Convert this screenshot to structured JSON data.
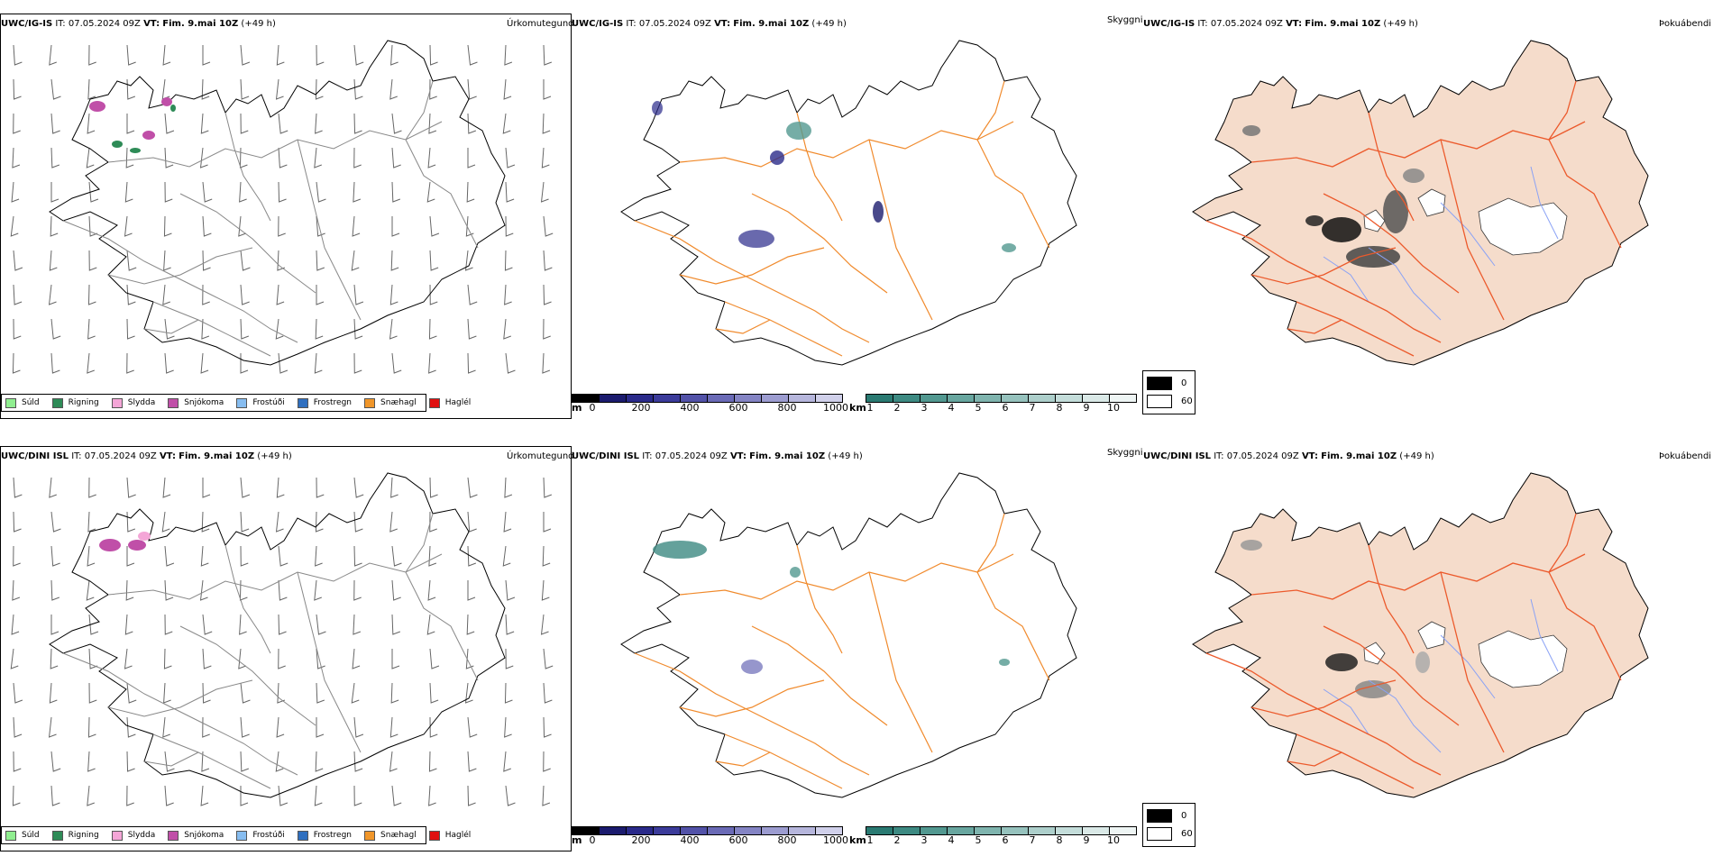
{
  "rows": [
    {
      "model": "UWC/IG-IS",
      "it_label": "IT:",
      "it_value": "07.05.2024 09Z",
      "vt_label": "VT:",
      "vt_value": "Fim. 9.mai 10Z",
      "lead": "(+49 h)"
    },
    {
      "model": "UWC/DINI ISL",
      "it_label": "IT:",
      "it_value": "07.05.2024 09Z",
      "vt_label": "VT:",
      "vt_value": "Fim. 9.mai 10Z",
      "lead": "(+49 h)"
    }
  ],
  "panel_titles": {
    "precip": "Úrkomutegund",
    "visibility": "Skyggni",
    "fog": "Þokuábendi"
  },
  "precip_legend": [
    {
      "label": "Súld",
      "color": "#90ee90"
    },
    {
      "label": "Rigning",
      "color": "#2e8b57"
    },
    {
      "label": "Slydda",
      "color": "#f4a6d7"
    },
    {
      "label": "Snjókoma",
      "color": "#c04fa8"
    },
    {
      "label": "Frostúði",
      "color": "#87bdf0"
    },
    {
      "label": "Frostregn",
      "color": "#2f6fbf"
    },
    {
      "label": "Snæhagl",
      "color": "#f0962a"
    },
    {
      "label": "Haglél",
      "color": "#e01010"
    }
  ],
  "ceiling_scale": {
    "unit": "m",
    "ticks": [
      "0",
      "200",
      "400",
      "600",
      "800",
      "1000"
    ],
    "colors": [
      "#000000",
      "#1b1b6e",
      "#2a2a8a",
      "#3b3b9a",
      "#5252a8",
      "#6a6ab6",
      "#8484c4",
      "#9c9cd0",
      "#b6b6dc",
      "#d0d0ea"
    ]
  },
  "visibility_scale": {
    "unit": "km",
    "ticks": [
      "1",
      "2",
      "3",
      "4",
      "5",
      "6",
      "7",
      "8",
      "9",
      "10"
    ],
    "colors": [
      "#2a7a72",
      "#3d8a82",
      "#529890",
      "#68a69f",
      "#7fb4ae",
      "#96c2bd",
      "#adcfcb",
      "#c4ddda",
      "#dae9e7",
      "#eef5f4"
    ]
  },
  "fog_legend": [
    {
      "label": "0",
      "color": "#000000"
    },
    {
      "label": "60",
      "color": "#ffffff"
    }
  ]
}
